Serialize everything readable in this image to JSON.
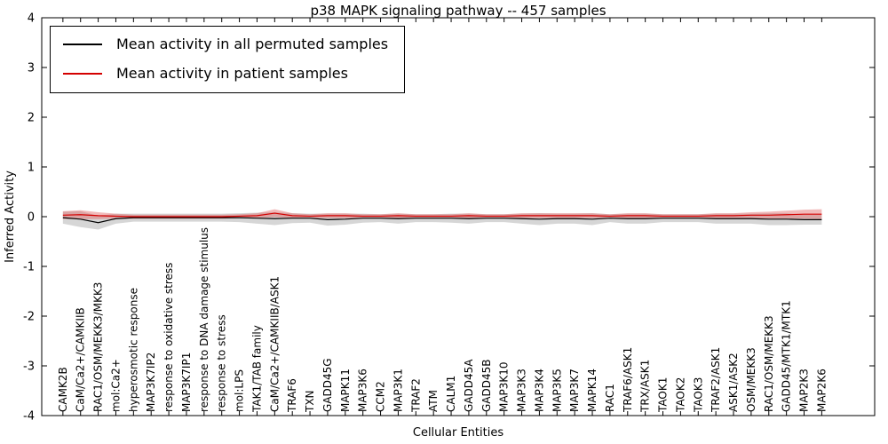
{
  "chart_data": {
    "type": "line",
    "title": "p38 MAPK signaling pathway -- 457 samples",
    "xlabel": "Cellular Entities",
    "ylabel": "Inferred Activity",
    "ylim": [
      -4,
      4
    ],
    "yticks": [
      -4,
      -3,
      -2,
      -1,
      0,
      1,
      2,
      3,
      4
    ],
    "grid": false,
    "legend": {
      "position": "upper left",
      "entries": [
        {
          "label": "Mean activity in all permuted samples",
          "color": "#000000"
        },
        {
          "label": "Mean activity in patient samples",
          "color": "#d40000"
        }
      ]
    },
    "categories": [
      "CAMK2B",
      "CaM/Ca2+/CAMKIIB",
      "RAC1/OSM/MEKK3/MKK3",
      "mol:Ca2+",
      "hyperosmotic response",
      "MAP3K7IP2",
      "response to oxidative stress",
      "MAP3K7IP1",
      "response to DNA damage stimulus",
      "response to stress",
      "mol:LPS",
      "TAK1/TAB family",
      "CaM/Ca2+/CAMKIIB/ASK1",
      "TRAF6",
      "TXN",
      "GADD45G",
      "MAPK11",
      "MAP3K6",
      "CCM2",
      "MAP3K1",
      "TRAF2",
      "ATM",
      "CALM1",
      "GADD45A",
      "GADD45B",
      "MAP3K10",
      "MAP3K3",
      "MAP3K4",
      "MAP3K5",
      "MAP3K7",
      "MAPK14",
      "RAC1",
      "TRAF6/ASK1",
      "TRX/ASK1",
      "TAOK1",
      "TAOK2",
      "TAOK3",
      "TRAF2/ASK1",
      "ASK1/ASK2",
      "OSM/MEKK3",
      "RAC1/OSM/MEKK3",
      "GADD45/MTK1/MTK1",
      "MAP2K3",
      "MAP2K6"
    ],
    "series": [
      {
        "name": "Mean activity in all permuted samples",
        "color": "#000000",
        "values": [
          -0.02,
          -0.05,
          -0.12,
          -0.04,
          -0.02,
          -0.02,
          -0.02,
          -0.02,
          -0.02,
          -0.02,
          -0.02,
          -0.03,
          -0.04,
          -0.03,
          -0.03,
          -0.06,
          -0.05,
          -0.03,
          -0.03,
          -0.04,
          -0.03,
          -0.03,
          -0.03,
          -0.04,
          -0.03,
          -0.03,
          -0.04,
          -0.05,
          -0.04,
          -0.04,
          -0.05,
          -0.03,
          -0.04,
          -0.04,
          -0.03,
          -0.03,
          -0.03,
          -0.04,
          -0.04,
          -0.04,
          -0.05,
          -0.05,
          -0.06,
          -0.06
        ],
        "band": {
          "color": "#c8c8c8",
          "opacity": 0.75,
          "upper": [
            0.1,
            0.11,
            0.02,
            0.06,
            0.06,
            0.06,
            0.06,
            0.06,
            0.06,
            0.06,
            0.07,
            0.08,
            0.09,
            0.07,
            0.06,
            0.06,
            0.06,
            0.06,
            0.05,
            0.06,
            0.05,
            0.05,
            0.06,
            0.06,
            0.05,
            0.05,
            0.06,
            0.07,
            0.06,
            0.06,
            0.07,
            0.05,
            0.06,
            0.06,
            0.05,
            0.05,
            0.05,
            0.06,
            0.06,
            0.06,
            0.07,
            0.07,
            0.04,
            0.04
          ],
          "lower": [
            -0.14,
            -0.21,
            -0.26,
            -0.14,
            -0.1,
            -0.1,
            -0.1,
            -0.1,
            -0.1,
            -0.1,
            -0.11,
            -0.14,
            -0.17,
            -0.13,
            -0.12,
            -0.18,
            -0.16,
            -0.12,
            -0.11,
            -0.14,
            -0.11,
            -0.11,
            -0.12,
            -0.14,
            -0.11,
            -0.11,
            -0.14,
            -0.17,
            -0.14,
            -0.14,
            -0.17,
            -0.11,
            -0.14,
            -0.14,
            -0.11,
            -0.11,
            -0.11,
            -0.14,
            -0.14,
            -0.14,
            -0.17,
            -0.17,
            -0.16,
            -0.16
          ]
        }
      },
      {
        "name": "Mean activity in patient samples",
        "color": "#d40000",
        "values": [
          0.03,
          0.04,
          0.02,
          0.01,
          0.0,
          0.0,
          0.0,
          0.0,
          0.0,
          0.0,
          0.01,
          0.02,
          0.07,
          0.02,
          0.01,
          0.02,
          0.02,
          0.01,
          0.01,
          0.02,
          0.01,
          0.01,
          0.01,
          0.02,
          0.01,
          0.01,
          0.02,
          0.02,
          0.02,
          0.02,
          0.02,
          0.01,
          0.02,
          0.02,
          0.01,
          0.01,
          0.01,
          0.02,
          0.02,
          0.03,
          0.03,
          0.04,
          0.05,
          0.05
        ],
        "band": {
          "color": "#e06666",
          "opacity": 0.45,
          "upper": [
            0.11,
            0.13,
            0.09,
            0.06,
            0.04,
            0.04,
            0.04,
            0.04,
            0.04,
            0.04,
            0.05,
            0.07,
            0.15,
            0.07,
            0.05,
            0.07,
            0.07,
            0.05,
            0.05,
            0.07,
            0.05,
            0.05,
            0.05,
            0.07,
            0.05,
            0.05,
            0.07,
            0.07,
            0.07,
            0.07,
            0.07,
            0.05,
            0.07,
            0.07,
            0.05,
            0.05,
            0.05,
            0.07,
            0.07,
            0.09,
            0.1,
            0.12,
            0.14,
            0.15
          ],
          "lower": [
            -0.05,
            -0.05,
            -0.05,
            -0.04,
            -0.04,
            -0.04,
            -0.04,
            -0.04,
            -0.04,
            -0.04,
            -0.03,
            -0.03,
            -0.01,
            -0.03,
            -0.03,
            -0.03,
            -0.03,
            -0.03,
            -0.03,
            -0.03,
            -0.03,
            -0.03,
            -0.03,
            -0.03,
            -0.03,
            -0.03,
            -0.03,
            -0.03,
            -0.03,
            -0.03,
            -0.03,
            -0.03,
            -0.03,
            -0.03,
            -0.03,
            -0.03,
            -0.03,
            -0.03,
            -0.03,
            -0.03,
            -0.04,
            -0.04,
            -0.04,
            -0.05
          ]
        }
      }
    ]
  }
}
